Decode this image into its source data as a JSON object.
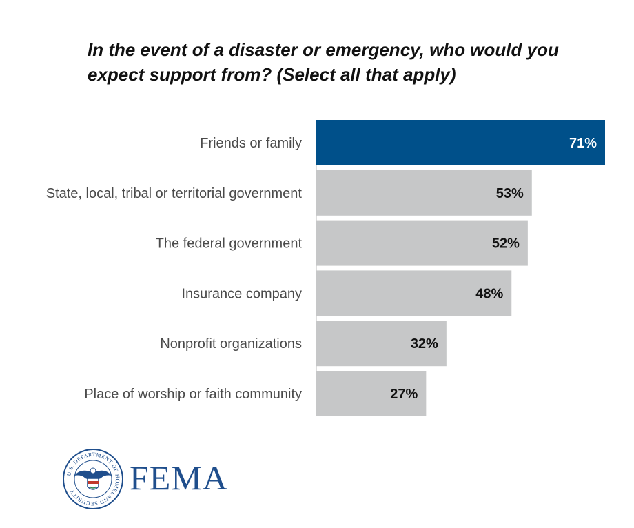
{
  "chart_data": {
    "type": "bar",
    "orientation": "horizontal",
    "title": "In the event of a disaster or emergency, who would you expect support from? (Select all that apply)",
    "categories": [
      "Friends or family",
      "State, local, tribal or territorial government",
      "The federal government",
      "Insurance company",
      "Nonprofit organizations",
      "Place of worship or faith community"
    ],
    "values": [
      71,
      53,
      52,
      48,
      32,
      27
    ],
    "value_labels": [
      "71%",
      "53%",
      "52%",
      "48%",
      "32%",
      "27%"
    ],
    "unit": "%",
    "xlim": [
      0,
      71
    ],
    "grid": false,
    "highlight_index": 0,
    "colors": {
      "highlight": "#00508a",
      "default": "#c6c7c8",
      "highlight_text": "#ffffff",
      "default_text": "#111111",
      "axis": "#bbbbbb"
    }
  },
  "logo": {
    "seal_text": "U.S. DEPARTMENT OF HOMELAND SECURITY",
    "brand": "FEMA",
    "brand_color": "#1f4e8c",
    "seal_icon": "dhs-seal-icon"
  }
}
